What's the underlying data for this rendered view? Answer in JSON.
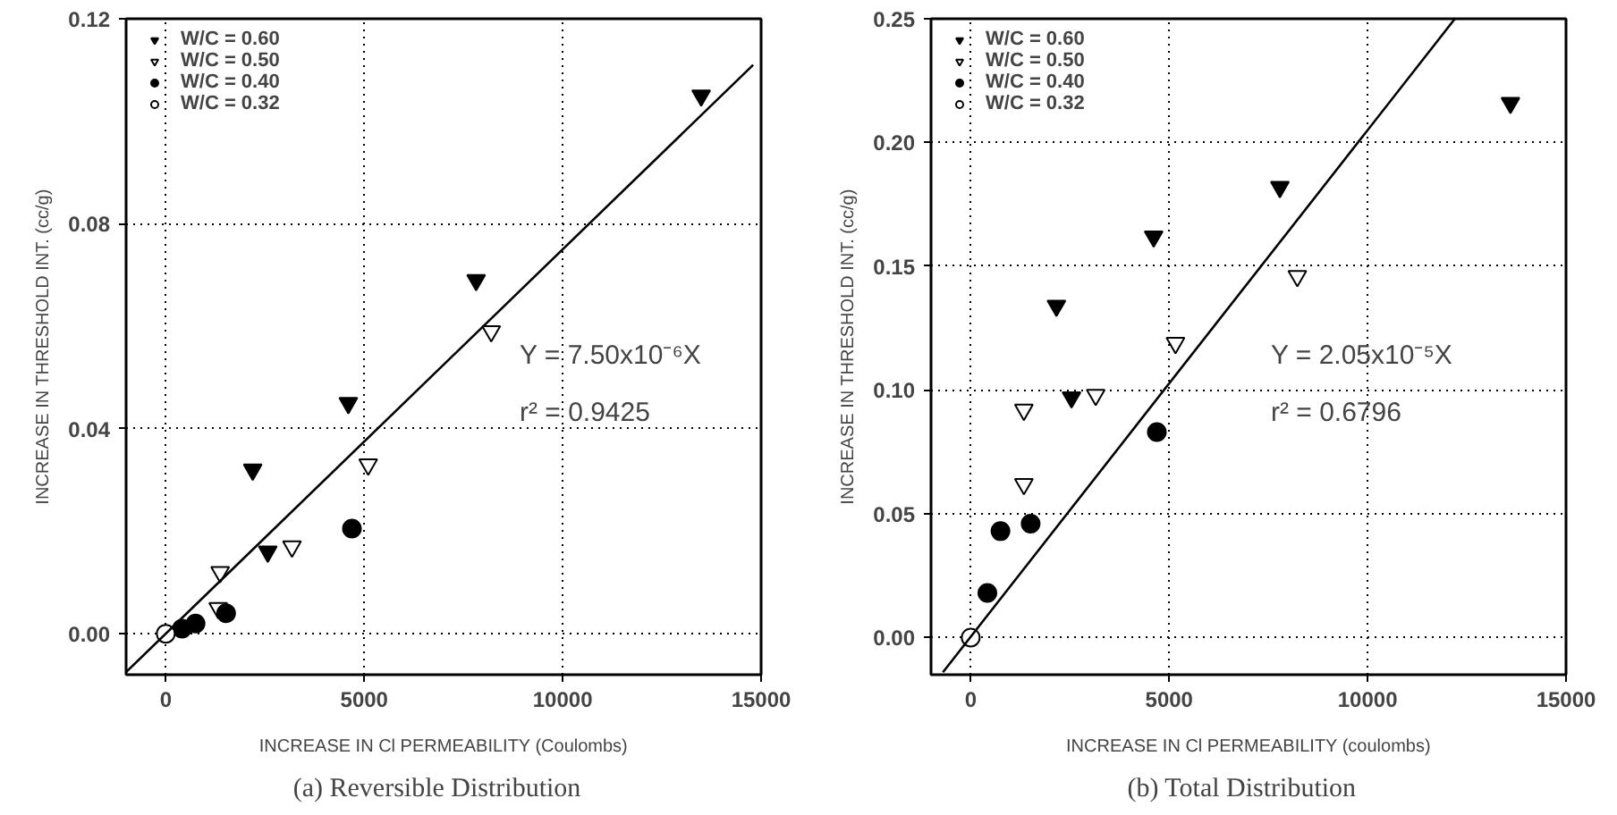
{
  "chart_data": [
    {
      "type": "scatter",
      "xlabel": "INCREASE IN Cl PERMEABILITY (Coulombs)",
      "ylabel": "INCREASE IN THRESHOLD INT. (cc/g)",
      "annotations": [
        "(a)   Reversible Distribution",
        "Y = 7.50x10⁻⁶X",
        "r² = 0.9425"
      ],
      "xlim": [
        -1000,
        15000
      ],
      "ylim": [
        -0.008,
        0.12
      ],
      "xticks": [
        0,
        5000,
        10000,
        15000
      ],
      "yticks": [
        {
          "value": 0,
          "label": "0.00"
        },
        {
          "value": 0.04,
          "label": "0.04"
        },
        {
          "value": 0.08,
          "label": "0.08"
        },
        {
          "value": 0.12,
          "label": "0.12"
        }
      ],
      "grid": true,
      "legend": "top left",
      "series": [
        {
          "name": "W/C = 0.60",
          "color": "#000000",
          "marker": "triangle",
          "x": [
            13490,
            7820,
            4600,
            2190,
            2570
          ],
          "values": [
            0.105,
            0.069,
            0.045,
            0.032,
            0.016
          ]
        },
        {
          "name": "W/C = 0.50",
          "color": "#ffffff",
          "marker": "triangle",
          "x": [
            8200,
            5100,
            3180,
            1370,
            1320
          ],
          "values": [
            0.059,
            0.033,
            0.017,
            0.012,
            0.005
          ]
        },
        {
          "name": "W/C = 0.40",
          "color": "#000000",
          "marker": "circle",
          "x": [
            4690,
            1520,
            750,
            410
          ],
          "values": [
            0.0205,
            0.004,
            0.002,
            0.001
          ]
        },
        {
          "name": "W/C = 0.32",
          "color": "#ffffff",
          "marker": "circle",
          "x": [
            0
          ],
          "values": [
            0
          ]
        },
        {
          "type": "line",
          "color": "#000000",
          "x": [
            -1000,
            14800
          ],
          "values": [
            -0.0075,
            0.111
          ]
        }
      ]
    },
    {
      "type": "scatter",
      "xlabel": "INCREASE IN Cl PERMEABILITY (coulombs)",
      "ylabel": "INCREASE IN THRESHOLD INT. (cc/g)",
      "annotations": [
        "(b)   Total Distribution",
        "Y = 2.05x10⁻⁵X",
        "r² = 0.6796"
      ],
      "xlim": [
        -1000,
        15000
      ],
      "ylim": [
        -0.015,
        0.25
      ],
      "xticks": [
        0,
        5000,
        10000,
        15000
      ],
      "yticks": [
        {
          "value": 0,
          "label": "0.00"
        },
        {
          "value": 0.05,
          "label": "0.05"
        },
        {
          "value": 0.1,
          "label": "0.10"
        },
        {
          "value": 0.15,
          "label": "0.15"
        },
        {
          "value": 0.2,
          "label": "0.20"
        },
        {
          "value": 0.25,
          "label": "0.25"
        }
      ],
      "grid": true,
      "legend": "top left",
      "series": [
        {
          "name": "W/C = 0.60",
          "color": "#000000",
          "marker": "triangle",
          "x": [
            13600,
            7790,
            4610,
            2160,
            2540
          ],
          "values": [
            0.216,
            0.182,
            0.162,
            0.134,
            0.097
          ]
        },
        {
          "name": "W/C = 0.50",
          "color": "#ffffff",
          "marker": "triangle",
          "x": [
            8230,
            5160,
            3150,
            1340,
            1340
          ],
          "values": [
            0.146,
            0.119,
            0.098,
            0.092,
            0.062
          ]
        },
        {
          "name": "W/C = 0.40",
          "color": "#000000",
          "marker": "circle",
          "x": [
            4690,
            1510,
            750,
            420
          ],
          "values": [
            0.083,
            0.046,
            0.043,
            0.018
          ]
        },
        {
          "name": "W/C = 0.32",
          "color": "#ffffff",
          "marker": "circle",
          "x": [
            0
          ],
          "values": [
            0
          ]
        },
        {
          "type": "line",
          "color": "#000000",
          "x": [
            -700,
            12200
          ],
          "values": [
            -0.014,
            0.25
          ]
        }
      ]
    }
  ]
}
